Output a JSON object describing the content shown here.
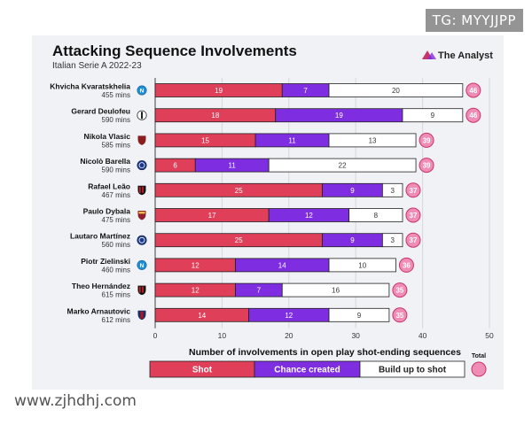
{
  "watermarks": {
    "corner": "TG: MYYJJPP",
    "bottom": "www.zjhdhj.com"
  },
  "brand": {
    "name": "The Analyst",
    "color": "#c8336b"
  },
  "colors": {
    "shot": "#df3f58",
    "chance": "#7e2ee0",
    "build": "#ffffff",
    "total": "#f08db7",
    "axis": "#444444",
    "grid": "#d6d7de"
  },
  "chart_data": {
    "type": "bar",
    "orientation": "horizontal",
    "stacked": true,
    "title": "Attacking Sequence Involvements",
    "subtitle": "Italian Serie A 2022-23",
    "xlabel": "Number of involvements in open play shot-ending sequences",
    "ylabel": "",
    "xlim": [
      0,
      50
    ],
    "xticks": [
      0,
      10,
      20,
      30,
      40,
      50
    ],
    "categories": [
      {
        "name": "Khvicha Kvaratskhelia",
        "mins": "455 mins",
        "club": "napoli"
      },
      {
        "name": "Gerard Deulofeu",
        "mins": "590 mins",
        "club": "udinese"
      },
      {
        "name": "Nikola Vlasic",
        "mins": "585 mins",
        "club": "torino"
      },
      {
        "name": "Nicolò Barella",
        "mins": "590 mins",
        "club": "inter"
      },
      {
        "name": "Rafael Leão",
        "mins": "467 mins",
        "club": "milan"
      },
      {
        "name": "Paulo Dybala",
        "mins": "475 mins",
        "club": "roma"
      },
      {
        "name": "Lautaro Martínez",
        "mins": "560 mins",
        "club": "inter"
      },
      {
        "name": "Piotr Zielinski",
        "mins": "460 mins",
        "club": "napoli"
      },
      {
        "name": "Theo Hernández",
        "mins": "615 mins",
        "club": "milan"
      },
      {
        "name": "Marko Arnautovic",
        "mins": "612 mins",
        "club": "bologna"
      }
    ],
    "series": [
      {
        "name": "Shot",
        "values": [
          19,
          18,
          15,
          6,
          25,
          17,
          25,
          12,
          12,
          14
        ]
      },
      {
        "name": "Chance created",
        "values": [
          7,
          19,
          11,
          11,
          9,
          12,
          9,
          14,
          7,
          12
        ]
      },
      {
        "name": "Build up to shot",
        "values": [
          20,
          9,
          13,
          22,
          3,
          8,
          3,
          10,
          16,
          9
        ]
      }
    ],
    "totals": [
      46,
      46,
      39,
      39,
      37,
      37,
      37,
      36,
      35,
      35
    ],
    "legend": {
      "position": "bottom",
      "total_label": "Total"
    }
  }
}
